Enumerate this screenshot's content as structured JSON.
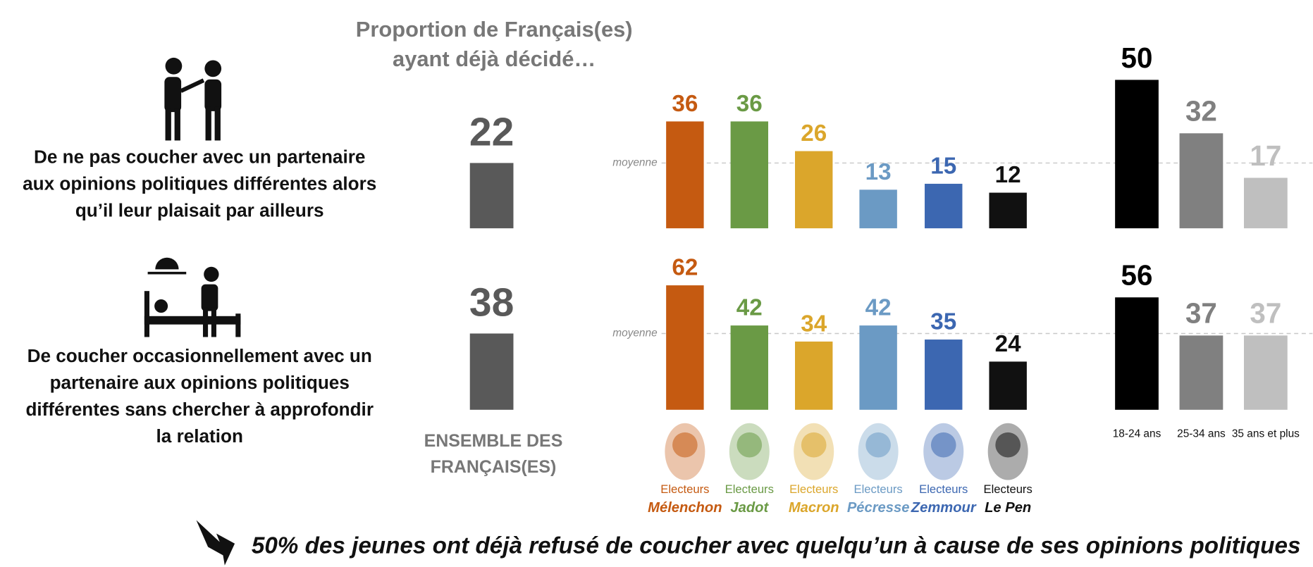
{
  "title": "Proportion de Français(es) ayant déjà décidé…",
  "conclusion": "50% des jeunes ont déjà refusé de coucher avec quelqu’un à cause de ses opinions politiques",
  "chart_data": [
    {
      "type": "bar",
      "color": "#595959",
      "categories": [
        "ENSEMBLE DES FRANÇAIS(ES)"
      ],
      "series": [
        {
          "name": "De ne pas coucher avec un partenaire aux opinions politiques différentes alors qu’il leur plaisait par ailleurs",
          "values": [
            22
          ]
        },
        {
          "name": "De coucher occasionnellement avec un partenaire aux opinions politiques différentes sans chercher à approfondir la relation",
          "values": [
            38
          ]
        }
      ]
    },
    {
      "type": "bar",
      "category_prefix": "Electeurs",
      "average_label": "moyenne",
      "categories": [
        "Mélenchon",
        "Jadot",
        "Macron",
        "Pécresse",
        "Zemmour",
        "Le Pen"
      ],
      "colors": [
        "#c55a11",
        "#6a9a45",
        "#dba62b",
        "#6b9ac4",
        "#3c67b1",
        "#111111"
      ],
      "series": [
        {
          "values": [
            36,
            36,
            26,
            13,
            15,
            12
          ]
        },
        {
          "values": [
            62,
            42,
            34,
            42,
            35,
            24
          ]
        }
      ]
    },
    {
      "type": "bar",
      "categories": [
        "18-24 ans",
        "25-34 ans",
        "35 ans et plus"
      ],
      "colors": [
        "#000000",
        "#808080",
        "#bfbfbf"
      ],
      "series": [
        {
          "values": [
            50,
            32,
            17
          ]
        },
        {
          "values": [
            56,
            37,
            37
          ]
        }
      ]
    }
  ]
}
